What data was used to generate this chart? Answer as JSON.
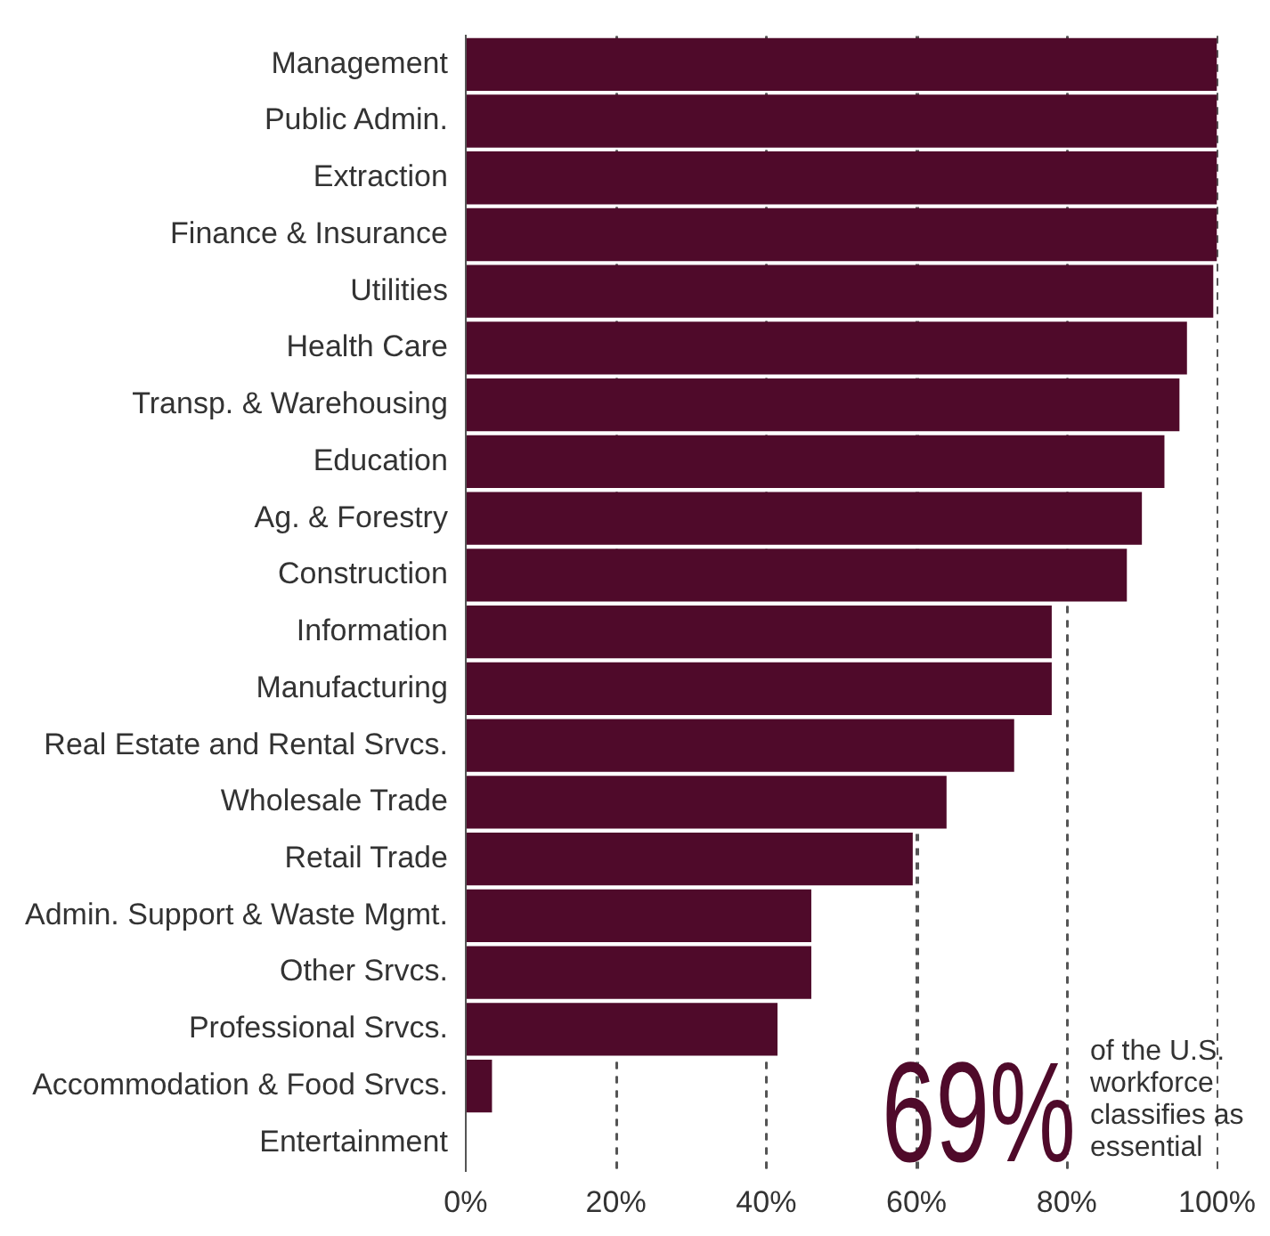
{
  "chart_data": {
    "type": "bar",
    "orientation": "horizontal",
    "categories": [
      "Management",
      "Public Admin.",
      "Extraction",
      "Finance & Insurance",
      "Utilities",
      "Health Care",
      "Transp. & Warehousing",
      "Education",
      "Ag. & Forestry",
      "Construction",
      "Information",
      "Manufacturing",
      "Real Estate and Rental Srvcs.",
      "Wholesale Trade",
      "Retail Trade",
      "Admin. Support & Waste Mgmt.",
      "Other Srvcs.",
      "Professional Srvcs.",
      "Accommodation & Food Srvcs.",
      "Entertainment"
    ],
    "values": [
      100,
      100,
      100,
      100,
      99.5,
      96,
      95,
      93,
      90,
      88,
      78,
      78,
      73,
      64,
      59.5,
      46,
      46,
      41.5,
      3.5,
      0
    ],
    "color": "#4f0a2a",
    "xlim": [
      0,
      100
    ],
    "xticks": [
      {
        "value": 0,
        "label": "0%"
      },
      {
        "value": 20,
        "label": "20%"
      },
      {
        "value": 40,
        "label": "40%"
      },
      {
        "value": 60,
        "label": "60%"
      },
      {
        "value": 80,
        "label": "80%"
      },
      {
        "value": 100,
        "label": "100%"
      }
    ],
    "grid": "x",
    "legend": false,
    "annotations": [
      "69%",
      "of the U.S. workforce classifies as essential"
    ]
  }
}
